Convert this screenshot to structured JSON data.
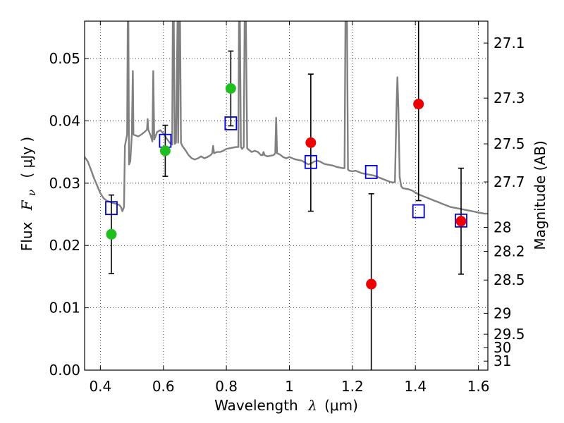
{
  "chart_data": {
    "type": "scatter",
    "xlabel_text": "Wavelength",
    "xlabel_symbol": "λ",
    "xlabel_unit": "(μm)",
    "ylabel_text": "Flux",
    "ylabel_symbol": "F",
    "ylabel_sub": "ν",
    "ylabel_unit": "( μJy )",
    "y2label": "Magnitude (AB)",
    "xlim": [
      0.35,
      1.63
    ],
    "ylim": [
      0.0,
      0.056
    ],
    "grid": true,
    "x_ticks": [
      0.4,
      0.6,
      0.8,
      1.0,
      1.2,
      1.4,
      1.6
    ],
    "x_tick_labels": [
      "0.4",
      "0.6",
      "0.8",
      "1",
      "1.2",
      "1.4",
      "1.6"
    ],
    "y_ticks": [
      0.0,
      0.01,
      0.02,
      0.03,
      0.04,
      0.05
    ],
    "y_tick_labels": [
      "0.00",
      "0.01",
      "0.02",
      "0.03",
      "0.04",
      "0.05"
    ],
    "mag_ticks": [
      {
        "label": "27.1",
        "mag": 27.1
      },
      {
        "label": "27.3",
        "mag": 27.3
      },
      {
        "label": "27.5",
        "mag": 27.5
      },
      {
        "label": "27.7",
        "mag": 27.7
      },
      {
        "label": "28",
        "mag": 28.0
      },
      {
        "label": "28.2",
        "mag": 28.2
      },
      {
        "label": "28.5",
        "mag": 28.5
      },
      {
        "label": "29",
        "mag": 29.0
      },
      {
        "label": "29.5",
        "mag": 29.5
      },
      {
        "label": "30",
        "mag": 30.0
      },
      {
        "label": "31",
        "mag": 31.0
      }
    ],
    "observed_points": [
      {
        "x": 0.435,
        "y": 0.0218,
        "err": 0.0063,
        "color": "#20bf20"
      },
      {
        "x": 0.606,
        "y": 0.0352,
        "err": 0.0041,
        "color": "#20bf20"
      },
      {
        "x": 0.814,
        "y": 0.0452,
        "err": 0.006,
        "color": "#20bf20"
      },
      {
        "x": 1.068,
        "y": 0.0365,
        "err": 0.011,
        "color": "#ee0000"
      },
      {
        "x": 1.26,
        "y": 0.0138,
        "err": 0.0145,
        "color": "#ee0000"
      },
      {
        "x": 1.41,
        "y": 0.0427,
        "err": 0.0155,
        "color": "#ee0000"
      },
      {
        "x": 1.545,
        "y": 0.0239,
        "err": 0.0085,
        "color": "#ee0000"
      }
    ],
    "model_points": [
      {
        "x": 0.435,
        "y": 0.026
      },
      {
        "x": 0.606,
        "y": 0.0368
      },
      {
        "x": 0.814,
        "y": 0.0396
      },
      {
        "x": 1.068,
        "y": 0.0334
      },
      {
        "x": 1.26,
        "y": 0.0318
      },
      {
        "x": 1.41,
        "y": 0.0255
      },
      {
        "x": 1.545,
        "y": 0.024
      }
    ],
    "model_spectrum": [
      [
        0.35,
        0.0342
      ],
      [
        0.36,
        0.0335
      ],
      [
        0.37,
        0.0322
      ],
      [
        0.38,
        0.0308
      ],
      [
        0.39,
        0.0296
      ],
      [
        0.4,
        0.0284
      ],
      [
        0.41,
        0.0276
      ],
      [
        0.42,
        0.0272
      ],
      [
        0.43,
        0.027
      ],
      [
        0.44,
        0.0268
      ],
      [
        0.45,
        0.0267
      ],
      [
        0.46,
        0.0265
      ],
      [
        0.465,
        0.0262
      ],
      [
        0.47,
        0.0255
      ],
      [
        0.475,
        0.0262
      ],
      [
        0.478,
        0.036
      ],
      [
        0.485,
        0.0378
      ],
      [
        0.487,
        0.056
      ],
      [
        0.489,
        0.056
      ],
      [
        0.491,
        0.033
      ],
      [
        0.495,
        0.0335
      ],
      [
        0.5,
        0.0378
      ],
      [
        0.503,
        0.048
      ],
      [
        0.505,
        0.0378
      ],
      [
        0.52,
        0.0375
      ],
      [
        0.53,
        0.0378
      ],
      [
        0.54,
        0.0382
      ],
      [
        0.548,
        0.0386
      ],
      [
        0.55,
        0.0403
      ],
      [
        0.552,
        0.0386
      ],
      [
        0.56,
        0.0376
      ],
      [
        0.565,
        0.0367
      ],
      [
        0.568,
        0.048
      ],
      [
        0.571,
        0.037
      ],
      [
        0.58,
        0.0382
      ],
      [
        0.59,
        0.0385
      ],
      [
        0.6,
        0.038
      ],
      [
        0.61,
        0.0372
      ],
      [
        0.62,
        0.0365
      ],
      [
        0.628,
        0.0362
      ],
      [
        0.63,
        0.056
      ],
      [
        0.633,
        0.056
      ],
      [
        0.636,
        0.0363
      ],
      [
        0.64,
        0.0365
      ],
      [
        0.645,
        0.056
      ],
      [
        0.647,
        0.0365
      ],
      [
        0.65,
        0.056
      ],
      [
        0.653,
        0.056
      ],
      [
        0.656,
        0.0365
      ],
      [
        0.66,
        0.036
      ],
      [
        0.67,
        0.0353
      ],
      [
        0.68,
        0.0345
      ],
      [
        0.69,
        0.034
      ],
      [
        0.7,
        0.0338
      ],
      [
        0.71,
        0.034
      ],
      [
        0.72,
        0.0343
      ],
      [
        0.73,
        0.034
      ],
      [
        0.74,
        0.0342
      ],
      [
        0.75,
        0.0345
      ],
      [
        0.755,
        0.0348
      ],
      [
        0.758,
        0.036
      ],
      [
        0.761,
        0.0348
      ],
      [
        0.77,
        0.035
      ],
      [
        0.78,
        0.035
      ],
      [
        0.79,
        0.0352
      ],
      [
        0.8,
        0.0355
      ],
      [
        0.81,
        0.0356
      ],
      [
        0.82,
        0.0357
      ],
      [
        0.83,
        0.0358
      ],
      [
        0.838,
        0.0358
      ],
      [
        0.84,
        0.056
      ],
      [
        0.843,
        0.056
      ],
      [
        0.846,
        0.0358
      ],
      [
        0.85,
        0.0355
      ],
      [
        0.855,
        0.0358
      ],
      [
        0.858,
        0.056
      ],
      [
        0.862,
        0.056
      ],
      [
        0.866,
        0.0356
      ],
      [
        0.87,
        0.0354
      ],
      [
        0.88,
        0.035
      ],
      [
        0.89,
        0.0352
      ],
      [
        0.9,
        0.035
      ],
      [
        0.91,
        0.0345
      ],
      [
        0.915,
        0.0345
      ],
      [
        0.918,
        0.035
      ],
      [
        0.921,
        0.0345
      ],
      [
        0.93,
        0.0343
      ],
      [
        0.94,
        0.0344
      ],
      [
        0.95,
        0.0345
      ],
      [
        0.955,
        0.0348
      ],
      [
        0.958,
        0.0405
      ],
      [
        0.961,
        0.0348
      ],
      [
        0.97,
        0.0346
      ],
      [
        0.98,
        0.0342
      ],
      [
        0.99,
        0.034
      ],
      [
        1.0,
        0.0342
      ],
      [
        1.01,
        0.034
      ],
      [
        1.02,
        0.0338
      ],
      [
        1.03,
        0.0337
      ],
      [
        1.04,
        0.0336
      ],
      [
        1.05,
        0.0333
      ],
      [
        1.06,
        0.033
      ],
      [
        1.07,
        0.0332
      ],
      [
        1.08,
        0.0335
      ],
      [
        1.09,
        0.0336
      ],
      [
        1.1,
        0.0334
      ],
      [
        1.11,
        0.0331
      ],
      [
        1.12,
        0.033
      ],
      [
        1.13,
        0.0329
      ],
      [
        1.14,
        0.0328
      ],
      [
        1.15,
        0.0326
      ],
      [
        1.16,
        0.0325
      ],
      [
        1.17,
        0.0324
      ],
      [
        1.175,
        0.0324
      ],
      [
        1.178,
        0.056
      ],
      [
        1.183,
        0.056
      ],
      [
        1.186,
        0.0322
      ],
      [
        1.19,
        0.032
      ],
      [
        1.2,
        0.0319
      ],
      [
        1.21,
        0.032
      ],
      [
        1.22,
        0.0318
      ],
      [
        1.23,
        0.0316
      ],
      [
        1.24,
        0.0315
      ],
      [
        1.25,
        0.0314
      ],
      [
        1.26,
        0.0313
      ],
      [
        1.27,
        0.0312
      ],
      [
        1.28,
        0.031
      ],
      [
        1.29,
        0.0308
      ],
      [
        1.3,
        0.0306
      ],
      [
        1.31,
        0.0304
      ],
      [
        1.32,
        0.0302
      ],
      [
        1.33,
        0.0301
      ],
      [
        1.335,
        0.0302
      ],
      [
        1.34,
        0.042
      ],
      [
        1.343,
        0.047
      ],
      [
        1.346,
        0.042
      ],
      [
        1.35,
        0.031
      ],
      [
        1.355,
        0.0295
      ],
      [
        1.36,
        0.0292
      ],
      [
        1.37,
        0.0291
      ],
      [
        1.38,
        0.029
      ],
      [
        1.39,
        0.0288
      ],
      [
        1.4,
        0.0285
      ],
      [
        1.41,
        0.0282
      ],
      [
        1.42,
        0.028
      ],
      [
        1.43,
        0.0278
      ],
      [
        1.44,
        0.0276
      ],
      [
        1.45,
        0.0274
      ],
      [
        1.46,
        0.0272
      ],
      [
        1.47,
        0.027
      ],
      [
        1.48,
        0.0268
      ],
      [
        1.49,
        0.0266
      ],
      [
        1.5,
        0.0264
      ],
      [
        1.51,
        0.0262
      ],
      [
        1.52,
        0.0261
      ],
      [
        1.53,
        0.026
      ],
      [
        1.54,
        0.0259
      ],
      [
        1.55,
        0.0258
      ],
      [
        1.56,
        0.0257
      ],
      [
        1.57,
        0.0256
      ],
      [
        1.58,
        0.0255
      ],
      [
        1.59,
        0.0254
      ],
      [
        1.6,
        0.0253
      ],
      [
        1.61,
        0.0252
      ],
      [
        1.62,
        0.0251
      ],
      [
        1.63,
        0.0251
      ]
    ],
    "colors": {
      "spectrum": "#808080",
      "model_box": "#0000dd",
      "errorbar": "#000000",
      "grid": "#000000"
    }
  }
}
